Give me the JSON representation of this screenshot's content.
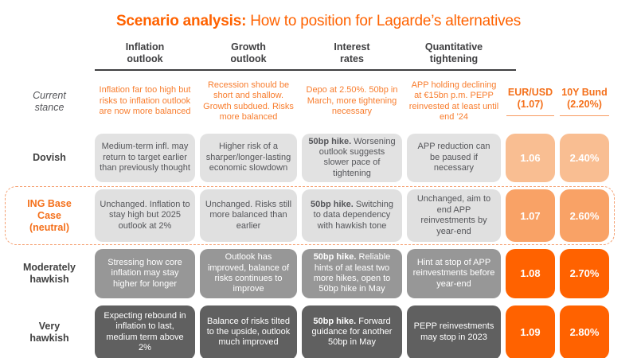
{
  "chart_data": {
    "type": "table",
    "title_bold": "Scenario analysis:",
    "title_rest": " How to position for Lagarde’s alternatives",
    "columns": [
      {
        "l1": "Inflation",
        "l2": "outlook"
      },
      {
        "l1": "Growth",
        "l2": "outlook"
      },
      {
        "l1": "Interest",
        "l2": "rates"
      },
      {
        "l1": "Quantitative",
        "l2": "tightening"
      }
    ],
    "market_columns": [
      {
        "label": "EUR/USD\n(1.07)"
      },
      {
        "label": "10Y Bund\n(2.20%)"
      }
    ],
    "rows": [
      {
        "label": "Current\nstance",
        "inflation": "Inflation far too high but risks to inflation outlook are now more balanced",
        "growth": "Recession should be short and shallow. Growth subdued. Risks more balanced",
        "rates_bold": "",
        "rates_rest": "Depo at 2.50%. 50bp in March, more tightening necessary",
        "qt": "APP holding declining at €15bn p.m. PEPP reinvested at least until end ’24"
      },
      {
        "label": "Dovish",
        "inflation": "Medium-term infl. may return to target earlier than previously thought",
        "growth": "Higher risk of a sharper/longer-lasting economic slowdown",
        "rates_bold": "50bp hike.",
        "rates_rest": " Worsening outlook suggests slower pace of tightening",
        "qt": "APP reduction can be paused if necessary",
        "eurusd": "1.06",
        "bund": "2.40%"
      },
      {
        "label": "ING Base\nCase\n(neutral)",
        "inflation": "Unchanged. Inflation to stay high but 2025 outlook at 2%",
        "growth": "Unchanged. Risks still more balanced than earlier",
        "rates_bold": "50bp hike.",
        "rates_rest": " Switching to data dependency with hawkish tone",
        "qt": "Unchanged, aim to end APP reinvestments by year-end",
        "eurusd": "1.07",
        "bund": "2.60%"
      },
      {
        "label": "Moderately\nhawkish",
        "inflation": "Stressing how core inflation may stay higher for longer",
        "growth": "Outlook has improved, balance of risks continues to improve",
        "rates_bold": "50bp hike.",
        "rates_rest": " Reliable hints of at least two more hikes, open to 50bp hike in May",
        "qt": "Hint at stop of APP reinvestments before year-end",
        "eurusd": "1.08",
        "bund": "2.70%"
      },
      {
        "label": "Very\nhawkish",
        "inflation": "Expecting rebound in inflation to last, medium term above 2%",
        "growth": "Balance of risks tilted to the upside, outlook much improved",
        "rates_bold": "50bp hike.",
        "rates_rest": " Forward guidance for another 50bp in May",
        "qt": "PEPP reinvestments may stop in 2023",
        "eurusd": "1.09",
        "bund": "2.80%"
      }
    ],
    "colors": {
      "accent_orange": "#FF6200",
      "stance_text_orange": "#F87D2E",
      "market_header_orange": "#F4701B",
      "dovish_value_box": "#F9BE92",
      "base_value_box": "#F9A266",
      "hawkish_value_box": "#FF6200",
      "light_gray_box": "#E2E2E2",
      "mid_gray_box": "#979797",
      "dark_gray_box": "#606060",
      "base_case_dashed_border": "#F5A173"
    }
  }
}
